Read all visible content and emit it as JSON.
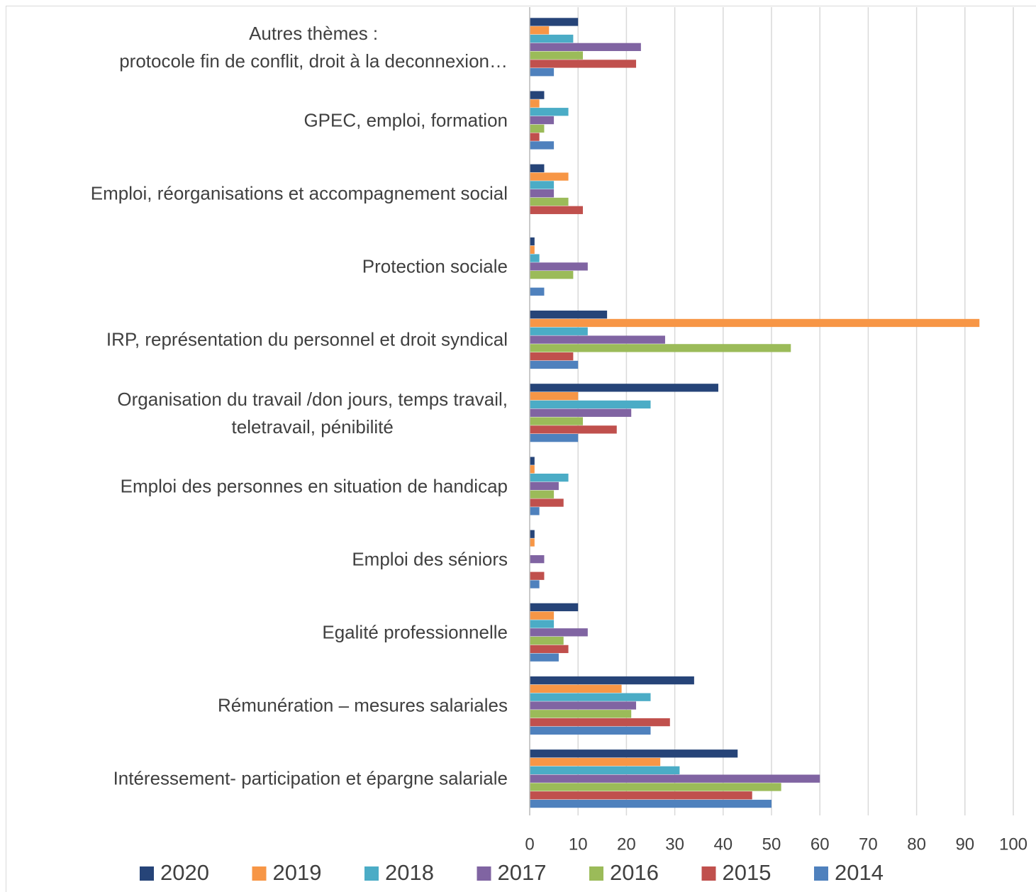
{
  "chart_data": {
    "type": "barh",
    "categories": [
      "Autres thèmes  :\nprotocole fin de conflit,  droit à la deconnexion…",
      "GPEC, emploi,  formation",
      "Emploi, réorganisations et accompagnement social",
      "Protection sociale",
      "IRP, représentation du personnel et  droit syndical",
      "Organisation du travail /don jours, temps travail,\nteletravail, pénibilité",
      "Emploi des personnes en situation de handicap",
      "Emploi des séniors",
      "Egalité professionnelle",
      "Rémunération – mesures salariales",
      "Intéressement- participation et épargne salariale"
    ],
    "series": [
      {
        "name": "2020",
        "color": "#264478",
        "values": [
          10,
          3,
          3,
          1,
          16,
          39,
          1,
          1,
          10,
          34,
          43
        ]
      },
      {
        "name": "2019",
        "color": "#f79646",
        "values": [
          4,
          2,
          8,
          1,
          93,
          10,
          1,
          1,
          5,
          19,
          27
        ]
      },
      {
        "name": "2018",
        "color": "#4bacc6",
        "values": [
          9,
          8,
          5,
          2,
          12,
          25,
          8,
          0,
          5,
          25,
          31
        ]
      },
      {
        "name": "2017",
        "color": "#8064a2",
        "values": [
          23,
          5,
          5,
          12,
          28,
          21,
          6,
          3,
          12,
          22,
          60
        ]
      },
      {
        "name": "2016",
        "color": "#9bbb59",
        "values": [
          11,
          3,
          8,
          9,
          54,
          11,
          5,
          0,
          7,
          21,
          52
        ]
      },
      {
        "name": "2015",
        "color": "#c0504d",
        "values": [
          22,
          2,
          11,
          0,
          9,
          18,
          7,
          3,
          8,
          29,
          46
        ]
      },
      {
        "name": "2014",
        "color": "#4f81bd",
        "values": [
          5,
          5,
          0,
          3,
          10,
          10,
          2,
          2,
          6,
          25,
          50
        ]
      }
    ],
    "xlim": [
      0,
      100
    ],
    "xticks": [
      0,
      10,
      20,
      30,
      40,
      50,
      60,
      70,
      80,
      90,
      100
    ],
    "grid": true,
    "legend": "bottom"
  }
}
